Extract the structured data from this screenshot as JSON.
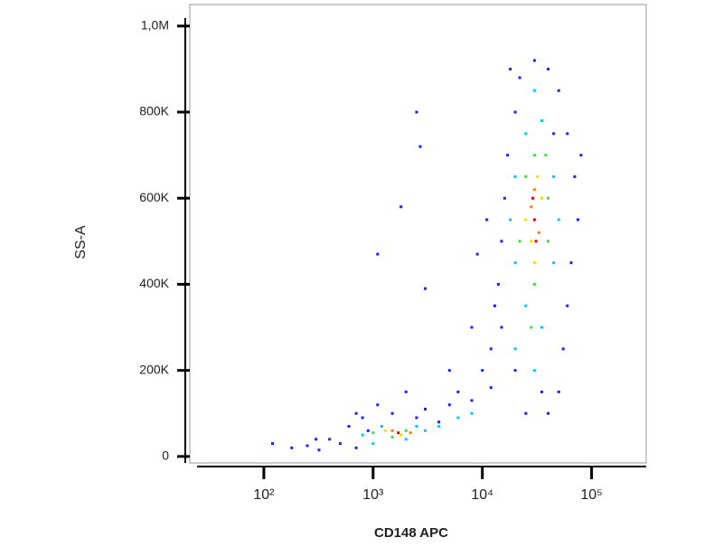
{
  "chart_data": {
    "type": "scatter",
    "x_label": "CD148 APC",
    "y_label": "SS-A",
    "x_scale": "log",
    "xlim": [
      21,
      316000
    ],
    "ylim": [
      -15000,
      1050000
    ],
    "xticks": [
      {
        "value": 100,
        "label": "10²"
      },
      {
        "value": 1000,
        "label": "10³"
      },
      {
        "value": 10000,
        "label": "10⁴"
      },
      {
        "value": 100000,
        "label": "10⁵"
      }
    ],
    "yticks": [
      0,
      {
        "value": 200000,
        "label": "200K"
      },
      {
        "value": 400000,
        "label": "400K"
      },
      {
        "value": 600000,
        "label": "600K"
      },
      {
        "value": 800000,
        "label": "800K"
      },
      {
        "value": 1000000,
        "label": "1,0M"
      }
    ],
    "series": [
      {
        "color": "#1f1fff",
        "x": [
          120,
          180,
          250,
          320,
          400,
          500,
          600,
          700,
          800,
          900,
          1100,
          1500,
          2500,
          3000,
          4000,
          5000,
          6000,
          8000,
          10000,
          12000,
          15000,
          14000,
          15000,
          16000,
          17000,
          20000,
          22000,
          30000,
          40000,
          50000,
          60000,
          70000,
          75000,
          65000,
          60000,
          55000,
          50000,
          40000,
          25000,
          12000,
          1100,
          1800,
          2500,
          2700,
          3000,
          13000,
          18000,
          45000,
          8000,
          9000,
          700,
          300,
          2000,
          5000,
          11000,
          80000,
          35000,
          20000
        ],
        "y": [
          30000,
          20000,
          25000,
          15000,
          40000,
          30000,
          70000,
          20000,
          90000,
          60000,
          120000,
          100000,
          90000,
          110000,
          80000,
          120000,
          150000,
          130000,
          200000,
          160000,
          300000,
          400000,
          500000,
          600000,
          700000,
          800000,
          880000,
          920000,
          900000,
          850000,
          750000,
          650000,
          550000,
          450000,
          350000,
          250000,
          150000,
          100000,
          100000,
          250000,
          470000,
          580000,
          800000,
          720000,
          390000,
          350000,
          900000,
          750000,
          300000,
          470000,
          100000,
          40000,
          150000,
          200000,
          550000,
          700000,
          150000,
          200000
        ]
      },
      {
        "color": "#00c8ff",
        "x": [
          1200,
          2000,
          2500,
          3000,
          4000,
          6000,
          8000,
          20000,
          25000,
          30000,
          35000,
          20000,
          18000,
          20000,
          25000,
          35000,
          45000,
          50000,
          45000,
          30000,
          800,
          1000
        ],
        "y": [
          70000,
          40000,
          70000,
          60000,
          70000,
          90000,
          100000,
          250000,
          350000,
          200000,
          300000,
          450000,
          550000,
          650000,
          750000,
          780000,
          650000,
          550000,
          450000,
          850000,
          50000,
          30000
        ]
      },
      {
        "color": "#40e040",
        "x": [
          1500,
          2000,
          1000,
          22000,
          25000,
          30000,
          40000,
          40000,
          30000,
          28000,
          38000
        ],
        "y": [
          45000,
          60000,
          55000,
          500000,
          650000,
          700000,
          600000,
          500000,
          400000,
          300000,
          700000
        ]
      },
      {
        "color": "#f0e000",
        "x": [
          1300,
          1800,
          25000,
          35000,
          30000,
          32000,
          28000
        ],
        "y": [
          60000,
          50000,
          550000,
          600000,
          450000,
          650000,
          500000
        ]
      },
      {
        "color": "#ff8000",
        "x": [
          1500,
          2200,
          28000,
          33000,
          30000
        ],
        "y": [
          60000,
          55000,
          580000,
          520000,
          620000
        ]
      },
      {
        "color": "#e00000",
        "x": [
          1700,
          30000,
          29000,
          31000
        ],
        "y": [
          55000,
          550000,
          600000,
          500000
        ]
      }
    ]
  }
}
